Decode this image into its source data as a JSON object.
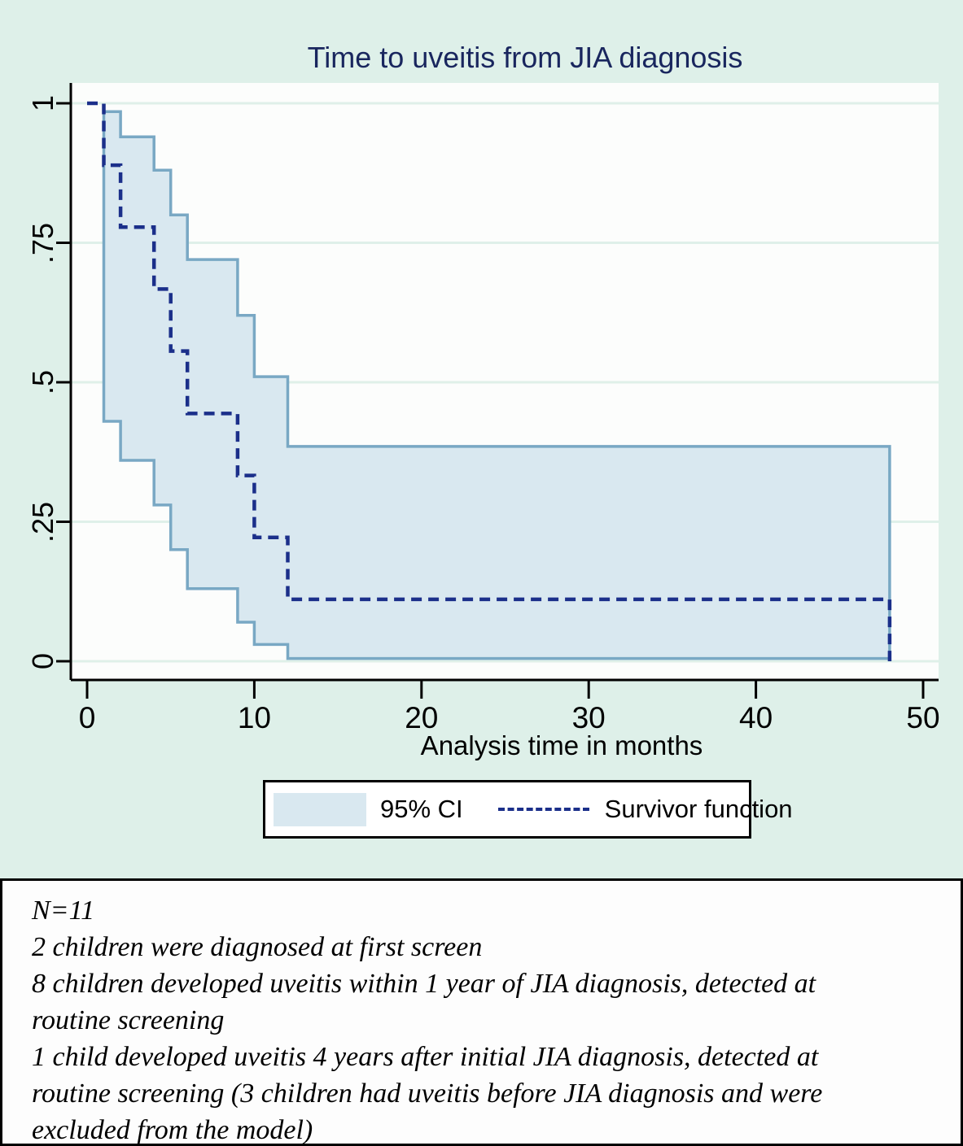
{
  "chart_data": {
    "type": "kaplan-meier-step-line-with-ci-area",
    "title": "Time to uveitis from JIA diagnosis",
    "xlabel": "Analysis time in months",
    "ylabel": "",
    "xlim": [
      0,
      50
    ],
    "ylim": [
      0,
      1
    ],
    "grid": "horizontal",
    "x_ticks": [
      "0",
      "10",
      "20",
      "30",
      "40",
      "50"
    ],
    "x_tick_values": [
      0,
      10,
      20,
      30,
      40,
      50
    ],
    "y_ticks": [
      "0",
      ".25",
      ".5",
      ".75",
      "1"
    ],
    "y_tick_values": [
      0,
      0.25,
      0.5,
      0.75,
      1
    ],
    "survivor": {
      "name": "Survivor function",
      "x": [
        0,
        1,
        2,
        4,
        5,
        6,
        9,
        10,
        12,
        48
      ],
      "y": [
        1,
        0.889,
        0.778,
        0.667,
        0.556,
        0.444,
        0.333,
        0.222,
        0.111,
        0
      ]
    },
    "ci_upper": {
      "name": "95% CI upper bound",
      "x": [
        1,
        2,
        4,
        5,
        6,
        9,
        10,
        12
      ],
      "y": [
        0.985,
        0.94,
        0.88,
        0.8,
        0.72,
        0.62,
        0.51,
        0.385
      ],
      "x_end": 48
    },
    "ci_lower": {
      "name": "95% CI lower bound",
      "x": [
        1,
        2,
        4,
        5,
        6,
        9,
        10,
        12
      ],
      "y": [
        0.43,
        0.36,
        0.28,
        0.2,
        0.13,
        0.07,
        0.03,
        0.005
      ],
      "x_end": 48
    },
    "legend_position": "bottom-center"
  },
  "legend": {
    "ci_label": "95% CI",
    "survivor_label": "Survivor function"
  },
  "notes": {
    "lines": [
      "N=11",
      "2 children were diagnosed at first screen",
      "8 children developed uveitis within 1 year of JIA diagnosis, detected at",
      "routine screening",
      "1 child developed uveitis 4 years after initial JIA diagnosis, detected at",
      "routine screening (3 children had uveitis before JIA diagnosis and were",
      "excluded from the model)"
    ]
  },
  "colors": {
    "panel_background": "#def0e9",
    "plot_background": "#fcfdfc",
    "gridline": "#dff0e9",
    "ci_band_fill": "#d9e8f0",
    "ci_band_edge": "#79a8c4",
    "survivor_line": "#1b2f8a",
    "title_text": "#19265e",
    "axis": "#000000"
  }
}
